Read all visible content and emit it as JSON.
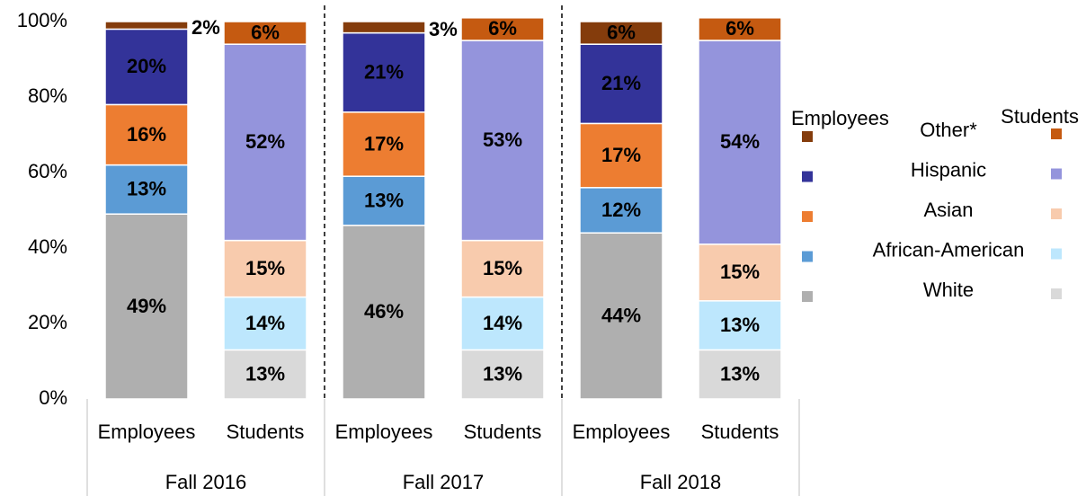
{
  "chart_data": {
    "type": "bar",
    "stacked": true,
    "categories": [
      "Employees",
      "Students",
      "Employees",
      "Students",
      "Employees",
      "Students"
    ],
    "groups": [
      "Fall 2016",
      "Fall 2017",
      "Fall 2018"
    ],
    "legend_columns": [
      "Employees",
      "Students"
    ],
    "series": [
      {
        "name": "White",
        "colors": [
          "#afafaf",
          "#d9d9d9"
        ],
        "values": [
          49,
          13,
          46,
          13,
          44,
          13
        ],
        "value_labels": [
          "49%",
          "13%",
          "46%",
          "13%",
          "44%",
          "13%"
        ]
      },
      {
        "name": "African-American",
        "colors": [
          "#5b9bd5",
          "#bde7fd"
        ],
        "values": [
          13,
          14,
          13,
          14,
          12,
          13
        ],
        "value_labels": [
          "13%",
          "14%",
          "13%",
          "14%",
          "12%",
          "13%"
        ]
      },
      {
        "name": "Asian",
        "colors": [
          "#ed7d31",
          "#f8cbad"
        ],
        "values": [
          16,
          15,
          17,
          15,
          17,
          15
        ],
        "value_labels": [
          "16%",
          "15%",
          "17%",
          "15%",
          "17%",
          "15%"
        ]
      },
      {
        "name": "Hispanic",
        "colors": [
          "#333399",
          "#9494dc"
        ],
        "values": [
          20,
          52,
          21,
          53,
          21,
          54
        ],
        "value_labels": [
          "20%",
          "52%",
          "21%",
          "53%",
          "21%",
          "54%"
        ]
      },
      {
        "name": "Other*",
        "colors": [
          "#843c0c",
          "#c55a11"
        ],
        "values": [
          2,
          6,
          3,
          6,
          6,
          6
        ],
        "value_labels": [
          "2%",
          "6%",
          "3%",
          "6%",
          "6%",
          "6%"
        ]
      }
    ],
    "ylim": [
      0,
      100
    ],
    "yticks": [
      {
        "value": 0,
        "label": "0%"
      },
      {
        "value": 20,
        "label": "20%"
      },
      {
        "value": 40,
        "label": "40%"
      },
      {
        "value": 60,
        "label": "60%"
      },
      {
        "value": 80,
        "label": "80%"
      },
      {
        "value": 100,
        "label": "100%"
      }
    ]
  }
}
